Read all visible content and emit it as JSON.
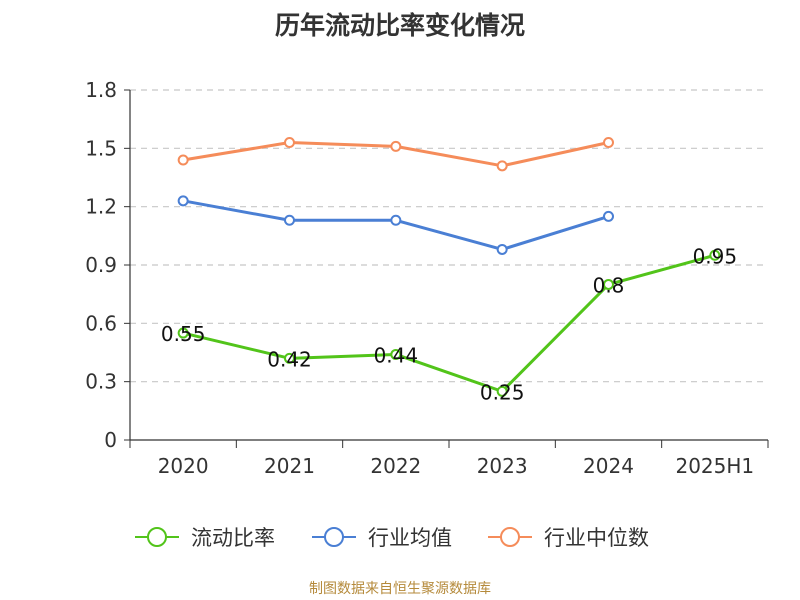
{
  "chart_data": {
    "type": "line",
    "title": "历年流动比率变化情况",
    "categories": [
      "2020",
      "2021",
      "2022",
      "2023",
      "2024",
      "2025H1"
    ],
    "ylim": [
      0,
      1.8
    ],
    "yticks": [
      "0",
      "0.3",
      "0.6",
      "0.9",
      "1.2",
      "1.5",
      "1.8"
    ],
    "grid": true,
    "legend_position": "bottom",
    "series": [
      {
        "name": "流动比率",
        "color": "#52c41a",
        "values": [
          0.55,
          0.42,
          0.44,
          0.25,
          0.8,
          0.95
        ],
        "labels": [
          "0.55",
          "0.42",
          "0.44",
          "0.25",
          "0.8",
          "0.95"
        ]
      },
      {
        "name": "行业均值",
        "color": "#4a7fd4",
        "values": [
          1.23,
          1.13,
          1.13,
          0.98,
          1.15,
          null
        ]
      },
      {
        "name": "行业中位数",
        "color": "#f58c5a",
        "values": [
          1.44,
          1.53,
          1.51,
          1.41,
          1.53,
          null
        ]
      }
    ]
  },
  "footer": {
    "source": "制图数据来自恒生聚源数据库"
  }
}
